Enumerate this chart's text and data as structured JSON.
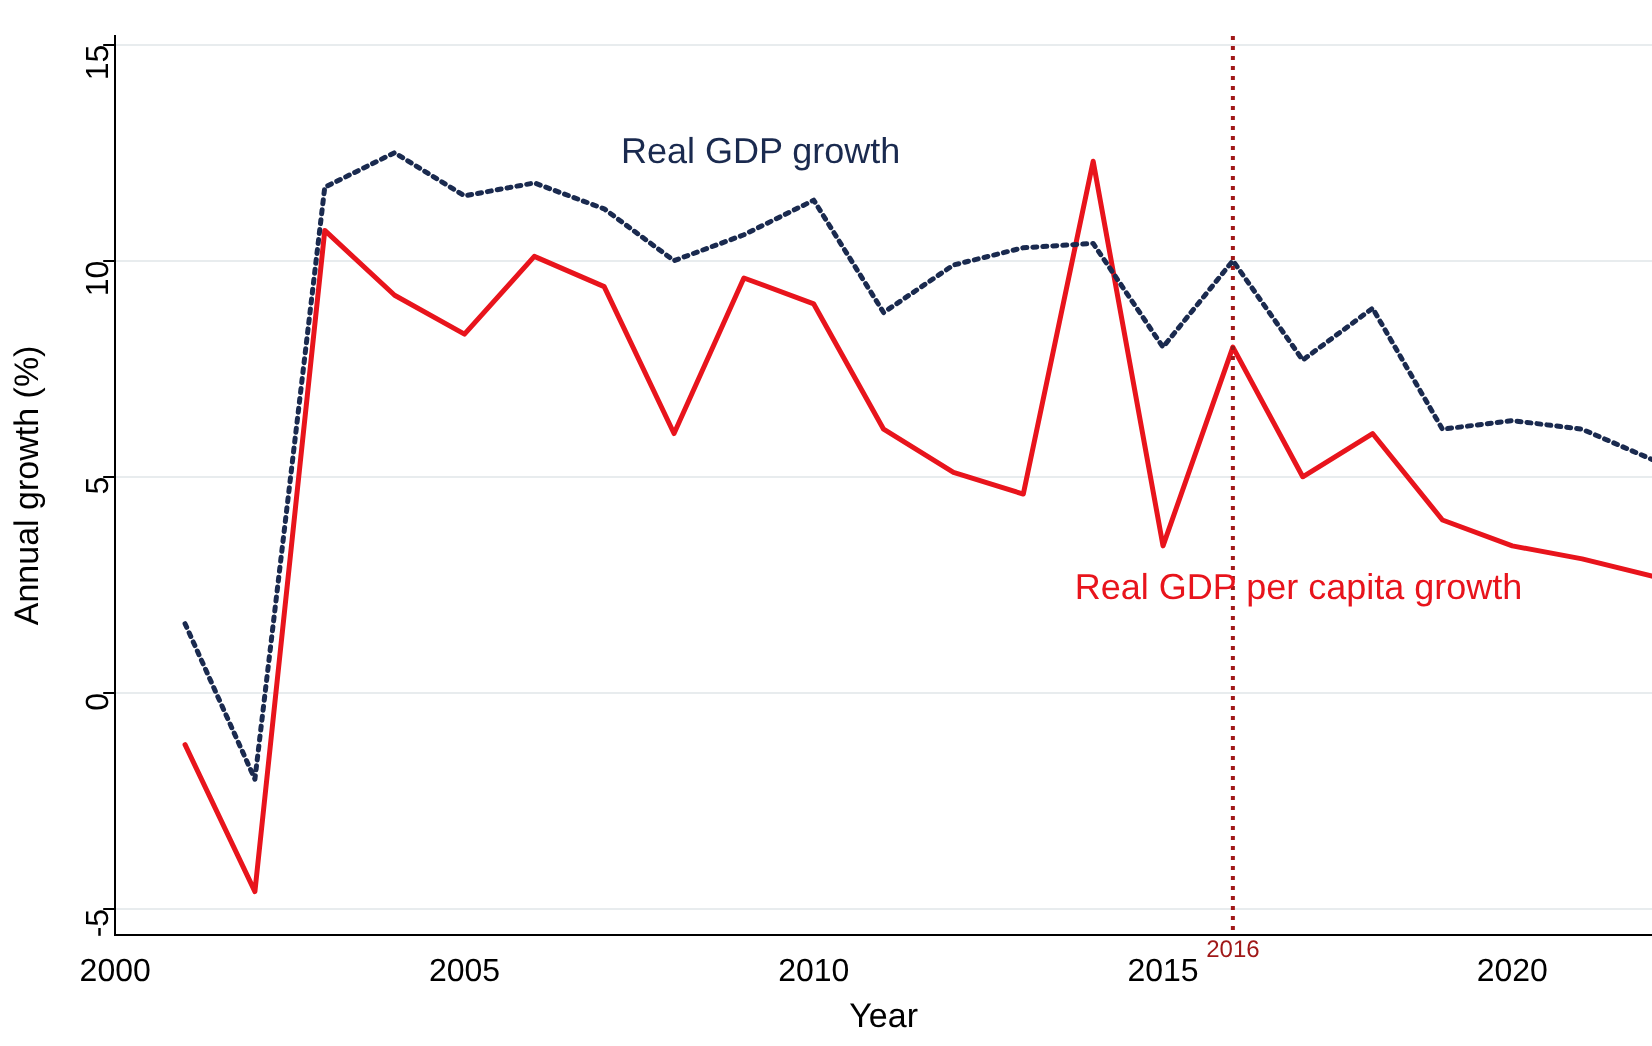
{
  "chart_data": {
    "type": "line",
    "xlabel": "Year",
    "ylabel": "Annual growth (%)",
    "x": [
      2001,
      2002,
      2003,
      2004,
      2005,
      2006,
      2007,
      2008,
      2009,
      2010,
      2011,
      2012,
      2013,
      2014,
      2015,
      2016,
      2017,
      2018,
      2019,
      2020,
      2021,
      2022
    ],
    "series": [
      {
        "name": "Real GDP growth",
        "color": "#1a2a4f",
        "line_style": "dotted",
        "values": [
          1.6,
          -2.0,
          11.7,
          12.5,
          11.5,
          11.8,
          11.2,
          10.0,
          10.6,
          11.4,
          8.8,
          9.9,
          10.3,
          10.4,
          8.0,
          10.0,
          7.7,
          8.9,
          6.1,
          6.3,
          6.1,
          5.4
        ]
      },
      {
        "name": "Real GDP per capita growth",
        "color": "#e8141c",
        "line_style": "solid",
        "values": [
          -1.2,
          -4.6,
          10.7,
          9.2,
          8.3,
          10.1,
          9.4,
          6.0,
          9.6,
          9.0,
          6.1,
          5.1,
          4.6,
          12.3,
          3.4,
          8.0,
          5.0,
          6.0,
          4.0,
          3.4,
          3.1,
          2.7
        ]
      }
    ],
    "xlim": [
      2000,
      2022
    ],
    "xticks": [
      2000,
      2005,
      2010,
      2015,
      2020
    ],
    "ylim": [
      -5.6,
      15.2
    ],
    "yticks": [
      -5,
      0,
      5,
      10,
      15
    ],
    "grid": "y",
    "legend": false,
    "marker": "none",
    "ref_lines": [
      {
        "axis": "x",
        "value": 2016,
        "label": "2016",
        "color": "#a01818",
        "line_style": "dotted"
      }
    ]
  }
}
